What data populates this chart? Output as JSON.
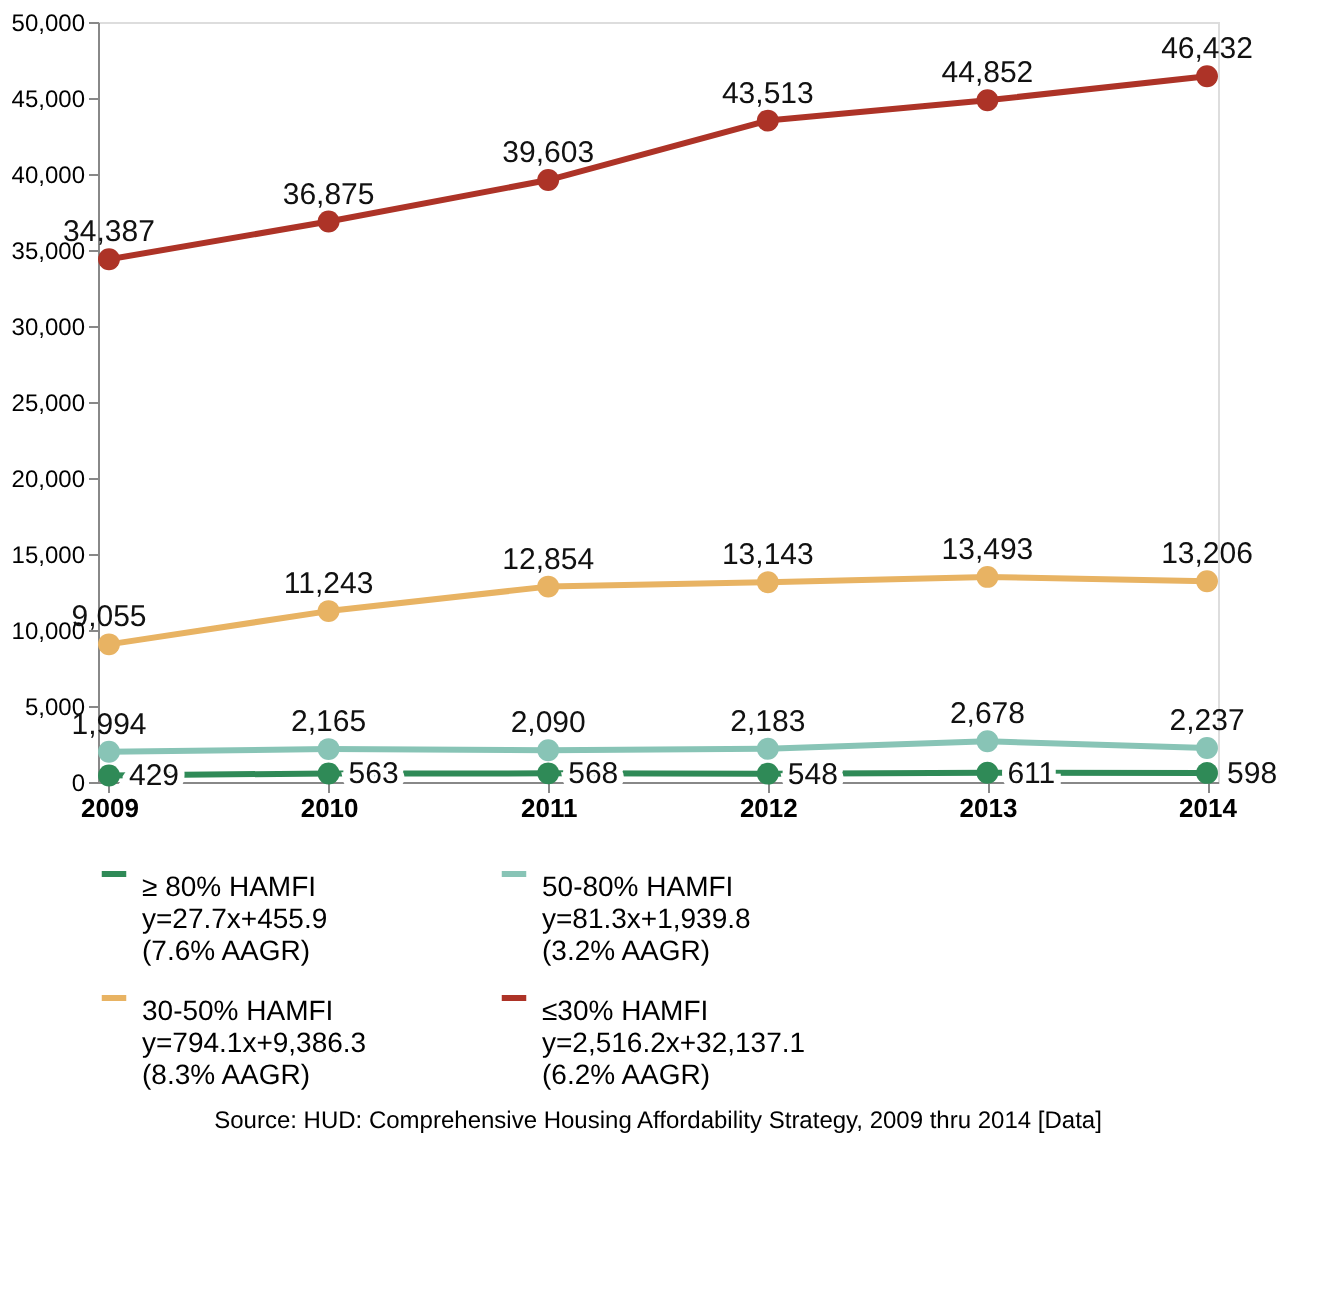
{
  "chart_data": {
    "type": "line",
    "categories": [
      "2009",
      "2010",
      "2011",
      "2012",
      "2013",
      "2014"
    ],
    "series": [
      {
        "name": "≥ 80% HAMFI\ny=27.7x+455.9\n(7.6% AAGR)",
        "color": "#2f8a57",
        "values": [
          429,
          563,
          568,
          548,
          611,
          598
        ],
        "value_labels": [
          "429",
          "563",
          "568",
          "548",
          "611",
          "598"
        ]
      },
      {
        "name": "50-80% HAMFI\ny=81.3x+1,939.8\n(3.2% AAGR)",
        "color": "#88c4b6",
        "values": [
          1994,
          2165,
          2090,
          2183,
          2678,
          2237
        ],
        "value_labels": [
          "1,994",
          "2,165",
          "2,090",
          "2,183",
          "2,678",
          "2,237"
        ]
      },
      {
        "name": "30-50% HAMFI\ny=794.1x+9,386.3\n(8.3% AAGR)",
        "color": "#e8b363",
        "values": [
          9055,
          11243,
          12854,
          13143,
          13493,
          13206
        ],
        "value_labels": [
          "9,055",
          "11,243",
          "12,854",
          "13,143",
          "13,493",
          "13,206"
        ]
      },
      {
        "name": "≤30% HAMFI\ny=2,516.2x+32,137.1\n(6.2% AAGR)",
        "color": "#ad3327",
        "values": [
          34387,
          36875,
          39603,
          43513,
          44852,
          46432
        ],
        "value_labels": [
          "34,387",
          "36,875",
          "39,603",
          "43,513",
          "44,852",
          "46,432"
        ]
      }
    ],
    "ylim": [
      0,
      50000
    ],
    "yticks": [
      {
        "value": 0,
        "label": "0"
      },
      {
        "value": 5000,
        "label": "5,000"
      },
      {
        "value": 10000,
        "label": "10,000"
      },
      {
        "value": 15000,
        "label": "15,000"
      },
      {
        "value": 20000,
        "label": "20,000"
      },
      {
        "value": 25000,
        "label": "25,000"
      },
      {
        "value": 30000,
        "label": "30,000"
      },
      {
        "value": 35000,
        "label": "35,000"
      },
      {
        "value": 40000,
        "label": "40,000"
      },
      {
        "value": 45000,
        "label": "45,000"
      },
      {
        "value": 50000,
        "label": "50,000"
      }
    ],
    "grid": false,
    "legend": "bottom",
    "marker": "circle",
    "line_style": "solid",
    "annotations": [
      "Source: HUD: Comprehensive Housing Affordability Strategy, 2009 thru 2014 [Data]"
    ]
  }
}
